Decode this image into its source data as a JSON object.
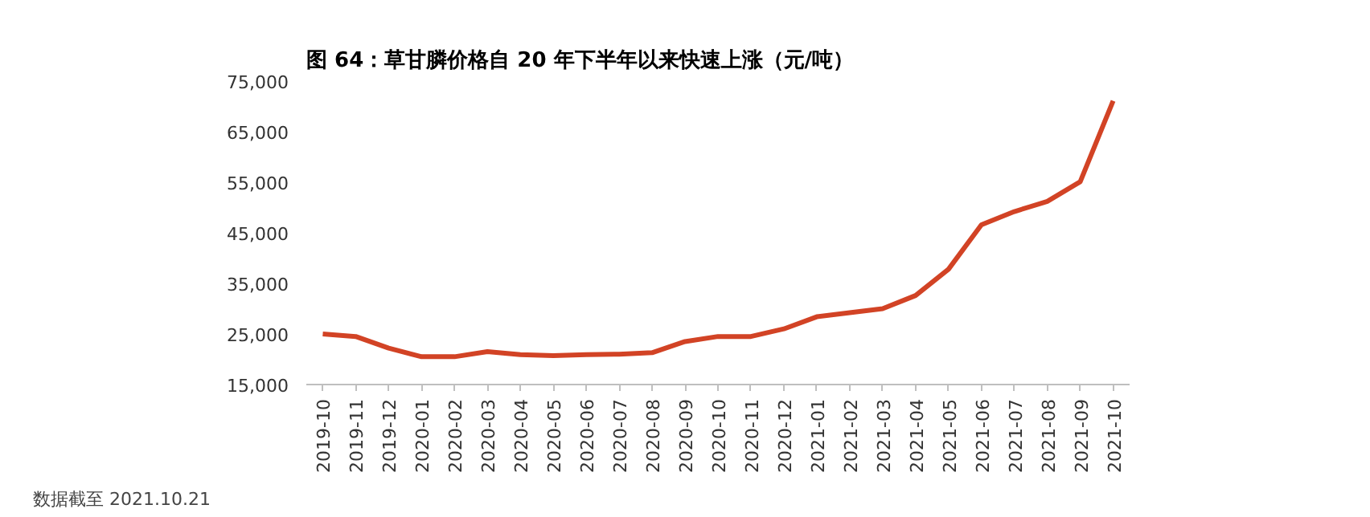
{
  "chart_data": {
    "type": "line",
    "title": "图 64：草甘膦价格自 20 年下半年以来快速上涨（元/吨）",
    "categories": [
      "2019-10",
      "2019-11",
      "2019-12",
      "2020-01",
      "2020-02",
      "2020-03",
      "2020-04",
      "2020-05",
      "2020-06",
      "2020-07",
      "2020-08",
      "2020-09",
      "2020-10",
      "2020-11",
      "2020-12",
      "2021-01",
      "2021-02",
      "2021-03",
      "2021-04",
      "2021-05",
      "2021-06",
      "2021-07",
      "2021-08",
      "2021-09",
      "2021-10"
    ],
    "series": [
      {
        "color": "#d24325",
        "values": [
          25000,
          24500,
          22200,
          20500,
          20500,
          21500,
          20900,
          20700,
          20900,
          21000,
          21300,
          23500,
          24500,
          24500,
          26000,
          28400,
          29200,
          30000,
          32600,
          37800,
          46600,
          49200,
          51200,
          55100,
          71100
        ]
      }
    ],
    "ylim": [
      15000,
      75000
    ],
    "yticks": [
      {
        "value": 15000,
        "label": "15,000"
      },
      {
        "value": 25000,
        "label": "25,000"
      },
      {
        "value": 35000,
        "label": "35,000"
      },
      {
        "value": 45000,
        "label": "45,000"
      },
      {
        "value": 55000,
        "label": "55,000"
      },
      {
        "value": 65000,
        "label": "65,000"
      },
      {
        "value": 75000,
        "label": "75,000"
      }
    ],
    "grid": false,
    "annotations": [
      "数据截至 2021.10.21"
    ]
  }
}
